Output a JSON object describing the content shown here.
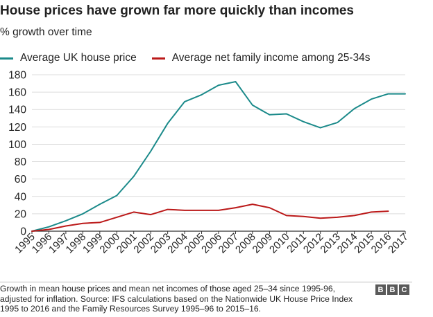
{
  "header": {
    "title": "House prices have grown far more quickly than incomes",
    "subtitle": "% growth over time"
  },
  "footer": {
    "source": "Growth in mean house prices and mean net incomes of those aged 25–34 since 1995-96, adjusted for inflation. Source: IFS calculations based on the Nationwide UK House Price Index 1995 to 2016 and the Family Resources Survey 1995–96 to 2015–16.",
    "logo": [
      "B",
      "B",
      "C"
    ]
  },
  "chart_data": {
    "type": "line",
    "x": [
      "1995",
      "1996",
      "1997",
      "1998",
      "1999",
      "2000",
      "2001",
      "2002",
      "2003",
      "2004",
      "2005",
      "2006",
      "2007",
      "2008",
      "2009",
      "2010",
      "2011",
      "2012",
      "2013",
      "2014",
      "2015",
      "2016",
      "2017"
    ],
    "ylim": [
      0,
      180
    ],
    "yticks": [
      0,
      20,
      40,
      60,
      80,
      100,
      120,
      140,
      160,
      180
    ],
    "grid": true,
    "legend_position": "top-left",
    "series": [
      {
        "name": "Average UK house price",
        "color": "#1b8a8a",
        "x": [
          1995,
          1996,
          1997,
          1998,
          1999,
          2000,
          2001,
          2002,
          2003,
          2004,
          2005,
          2006,
          2007,
          2008,
          2009,
          2010,
          2011,
          2012,
          2013,
          2014,
          2015,
          2016,
          2017
        ],
        "values": [
          0,
          5,
          12,
          20,
          31,
          41,
          63,
          92,
          124,
          149,
          157,
          168,
          172,
          145,
          134,
          135,
          126,
          119,
          125,
          141,
          152,
          158,
          158
        ]
      },
      {
        "name": "Average net family income among 25-34s",
        "color": "#bb1919",
        "x": [
          1995,
          1996,
          1997,
          1998,
          1999,
          2000,
          2001,
          2002,
          2003,
          2004,
          2005,
          2006,
          2007,
          2008,
          2009,
          2010,
          2011,
          2012,
          2013,
          2014,
          2015,
          2016
        ],
        "values": [
          0,
          2,
          6,
          9,
          10,
          16,
          22,
          19,
          25,
          24,
          24,
          24,
          27,
          31,
          27,
          18,
          17,
          15,
          16,
          18,
          22,
          23
        ]
      }
    ]
  }
}
